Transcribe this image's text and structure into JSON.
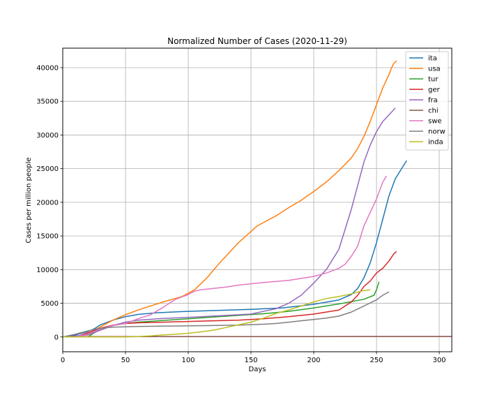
{
  "chart_data": {
    "type": "line",
    "title": "Normalized Number of Cases (2020-11-29)",
    "xlabel": "Days",
    "ylabel": "Cases per million people",
    "xlim": [
      0,
      310
    ],
    "ylim": [
      -2200,
      42900
    ],
    "xticks": [
      0,
      50,
      100,
      150,
      200,
      250,
      300
    ],
    "yticks": [
      0,
      5000,
      10000,
      15000,
      20000,
      25000,
      30000,
      35000,
      40000
    ],
    "grid": true,
    "legend_position": "top-right",
    "series": [
      {
        "name": "ita",
        "color": "#1f77b4",
        "x": [
          0,
          10,
          20,
          25,
          30,
          40,
          50,
          60,
          75,
          100,
          150,
          175,
          200,
          220,
          230,
          235,
          240,
          245,
          250,
          255,
          260,
          265,
          270,
          274
        ],
        "y": [
          0,
          300,
          800,
          1200,
          1800,
          2500,
          3000,
          3350,
          3600,
          3800,
          4100,
          4300,
          4850,
          5500,
          6300,
          7200,
          8800,
          11000,
          14000,
          17500,
          21000,
          23500,
          25000,
          26200
        ]
      },
      {
        "name": "usa",
        "color": "#ff7f0e",
        "x": [
          0,
          10,
          20,
          30,
          40,
          50,
          60,
          80,
          95,
          105,
          115,
          125,
          140,
          155,
          170,
          180,
          190,
          200,
          210,
          220,
          230,
          235,
          240,
          245,
          250,
          255,
          260,
          262,
          264,
          266
        ],
        "y": [
          0,
          0,
          500,
          1500,
          2500,
          3300,
          4000,
          5200,
          6000,
          7000,
          8800,
          11000,
          14000,
          16500,
          18000,
          19200,
          20300,
          21600,
          23000,
          24700,
          26600,
          28000,
          29800,
          32000,
          34500,
          37000,
          39000,
          40000,
          40700,
          41000
        ]
      },
      {
        "name": "tur",
        "color": "#2ca02c",
        "x": [
          0,
          20,
          30,
          40,
          50,
          60,
          80,
          100,
          120,
          140,
          160,
          180,
          200,
          220,
          240,
          248,
          250,
          252
        ],
        "y": [
          0,
          0,
          1200,
          1700,
          2000,
          2200,
          2450,
          2700,
          2950,
          3200,
          3450,
          3800,
          4300,
          4900,
          5600,
          6200,
          7000,
          8200
        ]
      },
      {
        "name": "ger",
        "color": "#d62728",
        "x": [
          0,
          10,
          20,
          30,
          40,
          50,
          60,
          80,
          100,
          120,
          140,
          160,
          180,
          200,
          220,
          230,
          235,
          240,
          245,
          250,
          255,
          260,
          264,
          266
        ],
        "y": [
          0,
          0,
          600,
          1300,
          1750,
          2000,
          2100,
          2200,
          2300,
          2400,
          2500,
          2700,
          3000,
          3400,
          4000,
          5200,
          6200,
          7500,
          8300,
          9500,
          10200,
          11300,
          12400,
          12700
        ]
      },
      {
        "name": "fra",
        "color": "#9467bd",
        "x": [
          0,
          20,
          30,
          40,
          50,
          60,
          80,
          100,
          120,
          150,
          170,
          180,
          190,
          200,
          210,
          220,
          225,
          230,
          235,
          240,
          245,
          250,
          255,
          260,
          265
        ],
        "y": [
          0,
          300,
          1000,
          1700,
          2200,
          2500,
          2750,
          2900,
          3100,
          3400,
          4200,
          5000,
          6200,
          8000,
          10000,
          13000,
          16000,
          19000,
          22500,
          26000,
          28500,
          30500,
          32000,
          33000,
          34000
        ]
      },
      {
        "name": "chi",
        "color": "#8c564b",
        "x": [
          0,
          20,
          50,
          100,
          150,
          200,
          250,
          310
        ],
        "y": [
          0,
          50,
          60,
          60,
          65,
          65,
          70,
          70
        ]
      },
      {
        "name": "swe",
        "color": "#e377c2",
        "x": [
          0,
          10,
          20,
          30,
          40,
          50,
          60,
          70,
          80,
          90,
          100,
          105,
          110,
          120,
          130,
          140,
          150,
          160,
          180,
          190,
          200,
          210,
          220,
          225,
          230,
          235,
          240,
          245,
          250,
          255,
          258
        ],
        "y": [
          0,
          0,
          400,
          1200,
          1700,
          2000,
          2700,
          3300,
          4400,
          5600,
          6300,
          6800,
          7000,
          7200,
          7400,
          7700,
          7900,
          8100,
          8400,
          8700,
          9000,
          9500,
          10200,
          10800,
          12000,
          13500,
          16500,
          18500,
          20500,
          23000,
          23900
        ]
      },
      {
        "name": "norw",
        "color": "#7f7f7f",
        "x": [
          0,
          10,
          20,
          30,
          40,
          60,
          80,
          100,
          120,
          140,
          160,
          170,
          180,
          190,
          200,
          210,
          220,
          230,
          240,
          250,
          255,
          260
        ],
        "y": [
          0,
          400,
          900,
          1300,
          1450,
          1550,
          1600,
          1650,
          1700,
          1750,
          1900,
          2000,
          2200,
          2400,
          2600,
          2800,
          3100,
          3700,
          4600,
          5500,
          6200,
          6700
        ]
      },
      {
        "name": "inda",
        "color": "#bcbd22",
        "x": [
          0,
          50,
          60,
          70,
          80,
          90,
          100,
          110,
          120,
          130,
          140,
          150,
          160,
          170,
          180,
          190,
          200,
          210,
          220,
          230,
          240,
          245
        ],
        "y": [
          0,
          0,
          50,
          150,
          300,
          400,
          550,
          750,
          1000,
          1400,
          1800,
          2200,
          2800,
          3500,
          4000,
          4600,
          5200,
          5700,
          6000,
          6400,
          6900,
          7000
        ]
      }
    ]
  }
}
